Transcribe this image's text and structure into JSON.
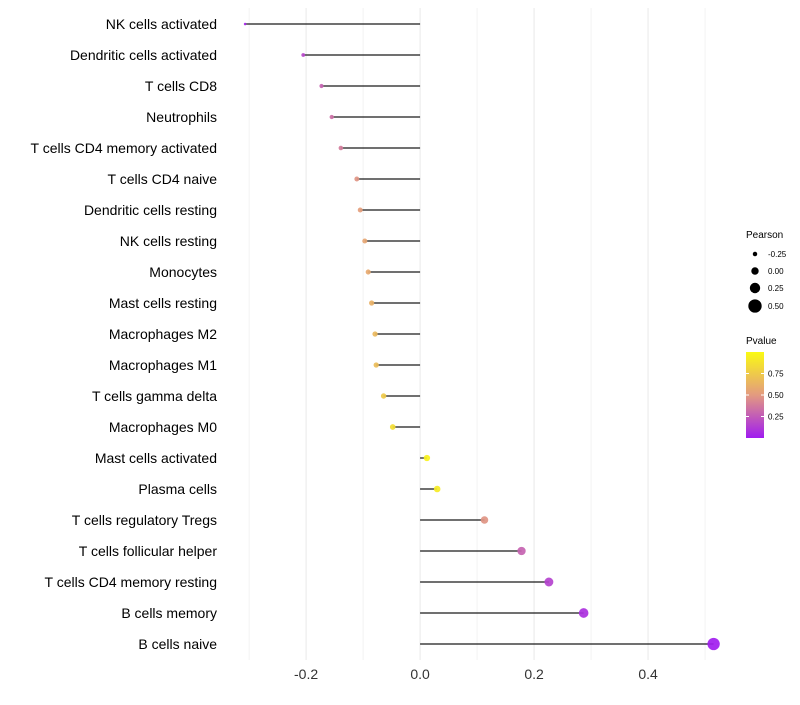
{
  "chart_data": {
    "type": "lollipop",
    "xlabel": "",
    "ylabel": "",
    "xlim": [
      -0.33,
      0.535
    ],
    "x_ticks": [
      -0.2,
      0.0,
      0.2,
      0.4
    ],
    "x_tick_labels": [
      "-0.2",
      "0.0",
      "0.2",
      "0.4"
    ],
    "grid": true,
    "categories": [
      "NK cells activated",
      "Dendritic cells activated",
      "T cells CD8",
      "Neutrophils",
      "T cells CD4 memory activated",
      "T cells CD4 naive",
      "Dendritic cells resting",
      "NK cells resting",
      "Monocytes",
      "Mast cells resting",
      "Macrophages M2",
      "Macrophages M1",
      "T cells gamma delta",
      "Macrophages M0",
      "Mast cells activated",
      "Plasma cells",
      "T cells regulatory  Tregs ",
      "T cells follicular helper",
      "T cells CD4 memory resting",
      "B cells memory",
      "B cells naive"
    ],
    "series": [
      {
        "name": "Pearson",
        "values": [
          -0.307,
          -0.205,
          -0.173,
          -0.155,
          -0.139,
          -0.111,
          -0.105,
          -0.097,
          -0.091,
          -0.085,
          -0.079,
          -0.077,
          -0.064,
          -0.048,
          0.012,
          0.03,
          0.113,
          0.178,
          0.226,
          0.287,
          0.515
        ]
      },
      {
        "name": "Pvalue",
        "values": [
          0.03,
          0.17,
          0.28,
          0.33,
          0.38,
          0.48,
          0.52,
          0.56,
          0.58,
          0.62,
          0.66,
          0.68,
          0.75,
          0.85,
          0.96,
          0.92,
          0.48,
          0.28,
          0.15,
          0.08,
          0.004
        ]
      }
    ],
    "legend_size": {
      "title": "Pearson",
      "labels": [
        "-0.25",
        "0.00",
        "0.25",
        "0.50"
      ],
      "values": [
        -0.25,
        0.0,
        0.25,
        0.5
      ]
    },
    "legend_color": {
      "title": "Pvalue",
      "labels": [
        "0.75",
        "0.50",
        "0.25"
      ],
      "values": [
        0.75,
        0.5,
        0.25
      ],
      "range": [
        0.0,
        1.0
      ],
      "low_color": "#a01cf0",
      "mid_color": "#e39a80",
      "high_color": "#fafa14"
    },
    "segment_color": "#1a1a1a",
    "grid_color": "#ebebeb"
  }
}
